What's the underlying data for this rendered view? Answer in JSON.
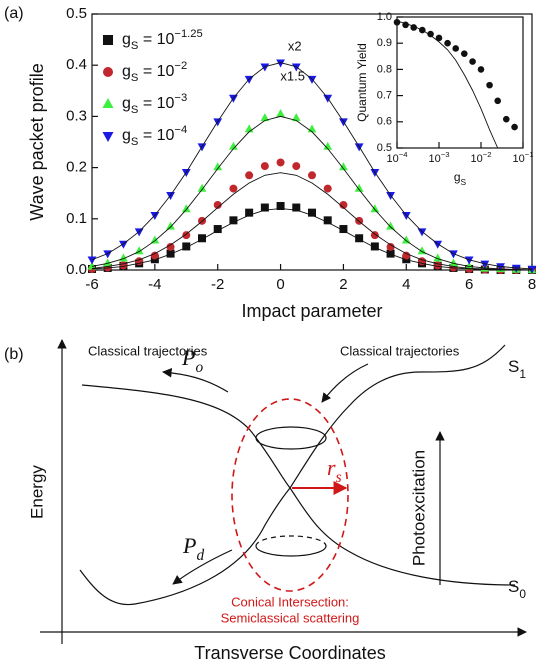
{
  "panel_labels": [
    "(a)",
    "(b)"
  ],
  "chart_data": [
    {
      "type": "scatter",
      "xlabel": "Impact parameter",
      "ylabel": "Wave packet profile",
      "xlim": [
        -6,
        8
      ],
      "ylim": [
        0,
        0.5
      ],
      "xticks": [
        -6,
        -4,
        -2,
        0,
        2,
        4,
        6,
        8
      ],
      "yticks": [
        {
          "value": 0,
          "label": "0.0"
        },
        0.1,
        0.2,
        0.3,
        0.4,
        0.5
      ],
      "legend": "upper left",
      "annotations": [
        "x2",
        "x1.5"
      ],
      "x": [
        -6,
        -5.5,
        -5,
        -4.5,
        -4,
        -3.5,
        -3,
        -2.5,
        -2,
        -1.5,
        -1,
        -0.5,
        0,
        0.5,
        1,
        1.5,
        2,
        2.5,
        3,
        3.5,
        4,
        4.5,
        5,
        5.5,
        6,
        6.5,
        7,
        7.5,
        8
      ],
      "series": [
        {
          "name": "gS = 10−1.25",
          "color": "#111111",
          "marker": "square",
          "values": [
            0.002,
            0.004,
            0.008,
            0.013,
            0.021,
            0.032,
            0.046,
            0.062,
            0.08,
            0.097,
            0.112,
            0.122,
            0.125,
            0.122,
            0.112,
            0.097,
            0.08,
            0.062,
            0.046,
            0.032,
            0.021,
            0.013,
            0.008,
            0.004,
            0.002,
            0.001,
            0,
            0,
            0
          ]
        },
        {
          "name": "gS = 10−2",
          "color": "#c0282e",
          "marker": "circle",
          "values": [
            0.002,
            0.005,
            0.009,
            0.017,
            0.028,
            0.045,
            0.068,
            0.096,
            0.127,
            0.159,
            0.185,
            0.203,
            0.21,
            0.203,
            0.185,
            0.159,
            0.127,
            0.096,
            0.068,
            0.045,
            0.028,
            0.017,
            0.009,
            0.005,
            0.002,
            0.001,
            0,
            0,
            0
          ]
        },
        {
          "name": "gS = 10−3",
          "color": "#3ef03e",
          "marker": "triangle-up",
          "values": [
            0.007,
            0.013,
            0.023,
            0.037,
            0.058,
            0.085,
            0.119,
            0.159,
            0.201,
            0.241,
            0.275,
            0.297,
            0.305,
            0.297,
            0.275,
            0.241,
            0.201,
            0.159,
            0.119,
            0.085,
            0.058,
            0.037,
            0.023,
            0.013,
            0.007,
            0.003,
            0.002,
            0.001,
            0
          ]
        },
        {
          "name": "gS = 10−4",
          "color": "#1a1ae6",
          "marker": "triangle-down",
          "values": [
            0.02,
            0.032,
            0.051,
            0.075,
            0.107,
            0.146,
            0.191,
            0.241,
            0.29,
            0.336,
            0.373,
            0.397,
            0.405,
            0.397,
            0.373,
            0.336,
            0.29,
            0.241,
            0.191,
            0.146,
            0.107,
            0.075,
            0.051,
            0.032,
            0.02,
            0.012,
            0.007,
            0.004,
            0.002
          ]
        },
        {
          "color": "#111111",
          "marker": "line",
          "values": [
            0.02,
            0.032,
            0.051,
            0.075,
            0.107,
            0.146,
            0.191,
            0.241,
            0.29,
            0.336,
            0.373,
            0.397,
            0.405,
            0.397,
            0.373,
            0.336,
            0.29,
            0.241,
            0.191,
            0.146,
            0.107,
            0.075,
            0.051,
            0.032,
            0.02,
            0.012,
            0.007,
            0.004,
            0.002
          ]
        },
        {
          "color": "#111111",
          "marker": "line",
          "values": [
            0.007,
            0.013,
            0.022,
            0.036,
            0.057,
            0.084,
            0.118,
            0.157,
            0.198,
            0.237,
            0.27,
            0.292,
            0.3,
            0.292,
            0.27,
            0.237,
            0.198,
            0.157,
            0.118,
            0.084,
            0.057,
            0.036,
            0.022,
            0.013,
            0.007,
            0.004,
            0.002,
            0.001,
            0
          ]
        },
        {
          "color": "#111111",
          "marker": "line",
          "values": [
            0.003,
            0.007,
            0.012,
            0.02,
            0.032,
            0.049,
            0.07,
            0.095,
            0.122,
            0.148,
            0.17,
            0.185,
            0.19,
            0.185,
            0.17,
            0.148,
            0.122,
            0.095,
            0.07,
            0.049,
            0.032,
            0.02,
            0.012,
            0.007,
            0.003,
            0.002,
            0.001,
            0,
            0
          ]
        },
        {
          "color": "#111111",
          "marker": "line",
          "values": [
            0.002,
            0.004,
            0.007,
            0.013,
            0.02,
            0.031,
            0.044,
            0.06,
            0.077,
            0.093,
            0.107,
            0.117,
            0.12,
            0.117,
            0.107,
            0.093,
            0.077,
            0.06,
            0.044,
            0.031,
            0.02,
            0.013,
            0.007,
            0.004,
            0.002,
            0.001,
            0,
            0,
            0
          ]
        }
      ]
    },
    {
      "type": "scatter",
      "xlabel": "gS",
      "ylabel": "Quantum Yield",
      "xlog": true,
      "xlim": [
        0.0001,
        0.1
      ],
      "ylim": [
        0.5,
        1.0
      ],
      "xticks": [
        {
          "value": 0.0001,
          "label": "10−4"
        },
        {
          "value": 0.001,
          "label": "10−3"
        },
        {
          "value": 0.01,
          "label": "10−2"
        },
        {
          "value": 0.1,
          "label": "10−1"
        }
      ],
      "yticks": [
        0.5,
        0.6,
        0.7,
        0.8,
        0.9,
        {
          "value": 1.0,
          "label": "1.0"
        }
      ],
      "x": [
        0.0001,
        0.00016,
        0.00025,
        0.0004,
        0.00063,
        0.001,
        0.0016,
        0.0025,
        0.004,
        0.0063,
        0.01,
        0.016,
        0.025,
        0.04,
        0.063
      ],
      "series": [
        {
          "color": "#111111",
          "marker": "circle",
          "values": [
            0.98,
            0.97,
            0.96,
            0.95,
            0.935,
            0.92,
            0.9,
            0.88,
            0.86,
            0.83,
            0.8,
            0.74,
            0.68,
            0.61,
            0.58
          ]
        },
        {
          "color": "#111111",
          "marker": "line",
          "x": [
            0.0001,
            0.00016,
            0.00025,
            0.0004,
            0.00063,
            0.001,
            0.0016,
            0.0025,
            0.004,
            0.0063,
            0.01,
            0.016,
            0.025
          ],
          "values": [
            0.985,
            0.975,
            0.965,
            0.95,
            0.93,
            0.905,
            0.875,
            0.835,
            0.78,
            0.72,
            0.65,
            0.57,
            0.5
          ]
        }
      ]
    }
  ],
  "diagram": {
    "left_label": "Classical trajectories",
    "right_label": "Classical trajectories",
    "p_o": "Po",
    "p_d": "Pd",
    "r_s": "rs",
    "s1": "S1",
    "s0": "S0",
    "photo": "Photoexcitation",
    "y_axis": "Energy",
    "x_axis": "Transverse Coordinates",
    "ci_line1": "Conical Intersection:",
    "ci_line2": "Semiclassical scattering"
  }
}
